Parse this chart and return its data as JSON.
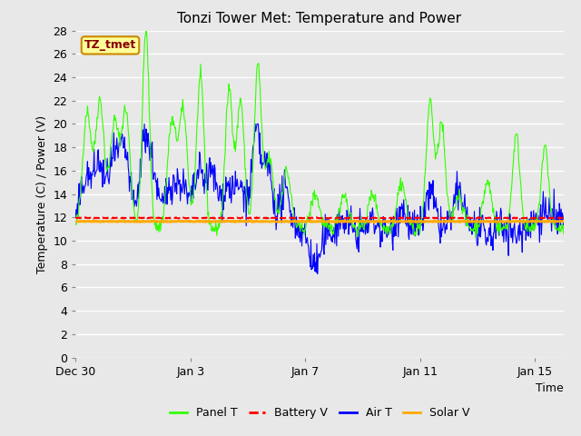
{
  "title": "Tonzi Tower Met: Temperature and Power",
  "xlabel": "Time",
  "ylabel": "Temperature (C) / Power (V)",
  "ylim": [
    0,
    28
  ],
  "yticks": [
    0,
    2,
    4,
    6,
    8,
    10,
    12,
    14,
    16,
    18,
    20,
    22,
    24,
    26,
    28
  ],
  "xtick_labels": [
    "Dec 30",
    "Jan 3",
    "Jan 7",
    "Jan 11",
    "Jan 15"
  ],
  "xtick_positions": [
    0,
    4,
    8,
    12,
    16
  ],
  "x_max": 17,
  "bg_color": "#e8e8e8",
  "plot_bg_color": "#e8e8e8",
  "grid_color": "#ffffff",
  "panel_T_color": "#33ff00",
  "battery_V_color": "#ff0000",
  "air_T_color": "#0000ff",
  "solar_V_color": "#ffaa00",
  "battery_V_mean": 11.95,
  "solar_V_mean": 11.65,
  "annotation_text": "TZ_tmet",
  "annotation_fg": "#880000",
  "annotation_bg": "#ffff99",
  "annotation_border": "#cc8800",
  "legend_labels": [
    "Panel T",
    "Battery V",
    "Air T",
    "Solar V"
  ],
  "legend_colors": [
    "#33ff00",
    "#ff0000",
    "#0000ff",
    "#ffaa00"
  ],
  "title_fontsize": 11,
  "axis_label_fontsize": 9,
  "tick_fontsize": 9,
  "legend_fontsize": 9,
  "figwidth": 6.4,
  "figheight": 4.8,
  "dpi": 100
}
